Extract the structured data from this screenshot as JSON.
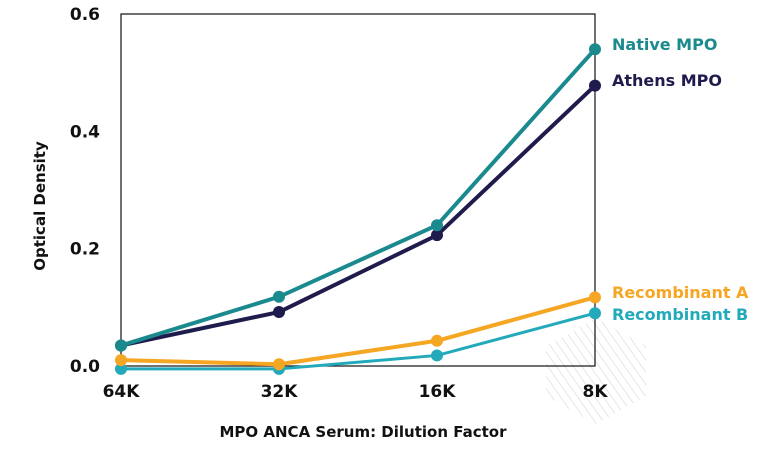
{
  "chart_data": {
    "type": "line",
    "title": "",
    "xlabel": "MPO ANCA Serum: Dilution Factor",
    "ylabel": "Optical Density",
    "categories": [
      "64K",
      "32K",
      "16K",
      "8K"
    ],
    "ylim": [
      0,
      0.6
    ],
    "yticks": [
      "0.0",
      "0.2",
      "0.4",
      "0.6"
    ],
    "grid": false,
    "series": [
      {
        "name": "Native MPO",
        "values": [
          0.035,
          0.118,
          0.24,
          0.54
        ],
        "color": "#1a8a8e"
      },
      {
        "name": "Athens MPO",
        "values": [
          0.035,
          0.092,
          0.223,
          0.478
        ],
        "color": "#1f1b4d"
      },
      {
        "name": "Recombinant A",
        "values": [
          0.01,
          0.003,
          0.043,
          0.117
        ],
        "color": "#f5a623"
      },
      {
        "name": "Recombinant B",
        "values": [
          -0.005,
          -0.005,
          0.018,
          0.09
        ],
        "color": "#22aabb"
      }
    ]
  }
}
